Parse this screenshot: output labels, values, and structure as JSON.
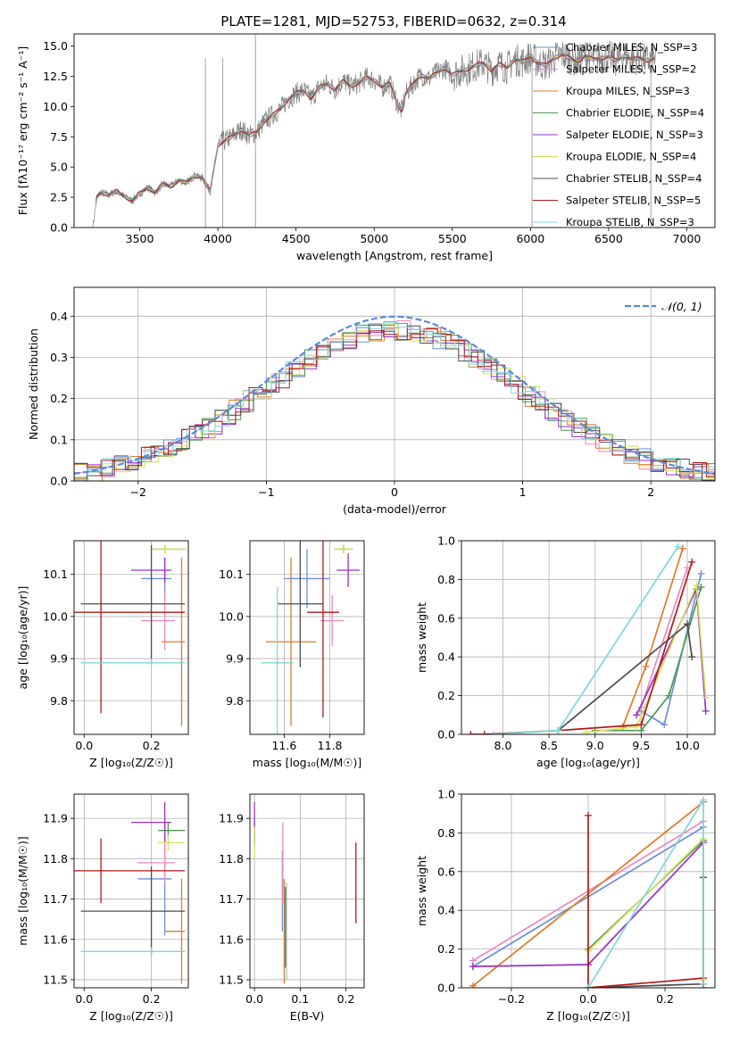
{
  "figure": {
    "title": "PLATE=1281, MJD=52753, FIBERID=0632, z=0.314"
  },
  "chart_data": [
    {
      "id": "spectrum",
      "type": "line",
      "xlabel": "wavelength [Angstrom, rest frame]",
      "ylabel": "Flux [fλ10⁻¹⁷ erg cm⁻² s⁻¹ A⁻¹]",
      "xlim": [
        3080,
        7180
      ],
      "ylim": [
        0,
        16
      ],
      "xticks": [
        3500,
        4000,
        4500,
        5000,
        5500,
        6000,
        6500,
        7000
      ],
      "yticks": [
        0.0,
        2.5,
        5.0,
        7.5,
        10.0,
        12.5,
        15.0
      ],
      "grid": false,
      "legend_position": "top-right",
      "data_points": {
        "x": [
          3200,
          3225,
          3250,
          3300,
          3350,
          3400,
          3450,
          3500,
          3550,
          3600,
          3650,
          3700,
          3750,
          3800,
          3850,
          3900,
          3950,
          4000,
          4050,
          4100,
          4150,
          4200,
          4250,
          4300,
          4350,
          4400,
          4450,
          4500,
          4550,
          4600,
          4650,
          4700,
          4750,
          4800,
          4850,
          4900,
          4950,
          5000,
          5050,
          5100,
          5150,
          5175,
          5200,
          5250,
          5300,
          5350,
          5400,
          5450,
          5500,
          5550,
          5600,
          5650,
          5700,
          5750,
          5800,
          5850,
          5900,
          5950,
          6000,
          6050,
          6100,
          6150,
          6200,
          6250,
          6300,
          6350,
          6400,
          6450,
          6500,
          6550,
          6600,
          6650,
          6700,
          6750,
          6800
        ],
        "y": [
          0.0,
          2.5,
          2.9,
          2.7,
          3.0,
          2.6,
          2.2,
          2.8,
          3.3,
          2.9,
          3.6,
          3.4,
          3.9,
          3.7,
          4.3,
          4.1,
          3.0,
          6.8,
          7.2,
          7.6,
          8.1,
          7.6,
          7.9,
          8.8,
          9.3,
          9.8,
          10.6,
          11.1,
          11.3,
          10.7,
          11.6,
          11.9,
          11.4,
          12.1,
          11.7,
          11.9,
          12.4,
          12.2,
          11.6,
          11.9,
          10.2,
          9.6,
          11.0,
          11.9,
          12.6,
          12.3,
          12.8,
          13.2,
          12.6,
          12.9,
          13.1,
          13.4,
          13.6,
          13.0,
          13.5,
          13.2,
          13.9,
          13.7,
          14.1,
          13.6,
          13.4,
          14.0,
          14.3,
          14.0,
          13.7,
          14.2,
          13.9,
          14.0,
          14.1,
          13.8,
          14.2,
          13.9,
          14.0,
          13.8,
          14.0
        ]
      },
      "series": [
        {
          "name": "Chabrier MILES, N_SSP=3",
          "color": "#6b8fd6"
        },
        {
          "name": "Salpeter MILES, N_SSP=2",
          "color": "#e78ac3"
        },
        {
          "name": "Kroupa MILES, N_SSP=3",
          "color": "#e07b27"
        },
        {
          "name": "Chabrier ELODIE, N_SSP=4",
          "color": "#4f9a4f"
        },
        {
          "name": "Salpeter ELODIE, N_SSP=3",
          "color": "#9b30c6"
        },
        {
          "name": "Kroupa ELODIE, N_SSP=4",
          "color": "#d6e05a"
        },
        {
          "name": "Chabrier STELIB, N_SSP=4",
          "color": "#4d4d4d"
        },
        {
          "name": "Salpeter STELIB, N_SSP=5",
          "color": "#b01818"
        },
        {
          "name": "Kroupa STELIB, N_SSP=3",
          "color": "#7fd6de"
        }
      ]
    },
    {
      "id": "residuals",
      "type": "histogram",
      "xlabel": "(data-model)/error",
      "ylabel": "Normed distribution",
      "xlim": [
        -2.5,
        2.5
      ],
      "ylim": [
        0,
        0.47
      ],
      "xticks": [
        -2,
        -1,
        0,
        1,
        2
      ],
      "yticks": [
        0.0,
        0.1,
        0.2,
        0.3,
        0.4
      ],
      "grid": true,
      "legend_position": "top-right",
      "reference_curve": {
        "name": "𝒩(0, 1)",
        "color": "#5b8bd8"
      }
    },
    {
      "id": "age-vs-Z",
      "type": "errorbar",
      "xlabel": "Z [log₁₀(Z/Z☉)]",
      "ylabel": "age  [log₁₀(age/yr)]",
      "xlim": [
        -0.03,
        0.31
      ],
      "ylim": [
        9.72,
        10.18
      ],
      "xticks": [
        0.0,
        0.2
      ],
      "yticks": [
        9.8,
        9.9,
        10.0,
        10.1
      ],
      "grid": true,
      "points": [
        {
          "x": 0.24,
          "y": 10.09,
          "xerr": [
            0.07,
            0.02
          ],
          "yerr": 0.05,
          "color": "#6b8fd6"
        },
        {
          "x": 0.24,
          "y": 9.99,
          "xerr": [
            0.07,
            0.03
          ],
          "yerr": 0.07,
          "color": "#e78ac3"
        },
        {
          "x": 0.29,
          "y": 9.94,
          "xerr": [
            0.06,
            0.01
          ],
          "yerr": 0.2,
          "color": "#e07b27"
        },
        {
          "x": 0.24,
          "y": 10.16,
          "xerr": [
            0.04,
            0.06
          ],
          "yerr": 0.01,
          "color": "#4f9a4f"
        },
        {
          "x": 0.24,
          "y": 10.11,
          "xerr": [
            0.1,
            0.02
          ],
          "yerr": 0.03,
          "color": "#9b30c6"
        },
        {
          "x": 0.24,
          "y": 10.16,
          "xerr": [
            0.04,
            0.06
          ],
          "yerr": 0.01,
          "color": "#d6e05a"
        },
        {
          "x": 0.2,
          "y": 10.03,
          "xerr": [
            0.21,
            0.1
          ],
          "yerr": 0.14,
          "color": "#4d4d4d"
        },
        {
          "x": 0.05,
          "y": 10.01,
          "xerr": [
            0.08,
            0.25
          ],
          "yerr": 0.24,
          "color": "#b01818"
        },
        {
          "x": 0.2,
          "y": 9.89,
          "xerr": [
            0.21,
            0.1
          ],
          "yerr": 0.01,
          "color": "#7fd6de"
        }
      ]
    },
    {
      "id": "age-vs-mass",
      "type": "errorbar",
      "xlabel": "mass [log₁₀(M/M☉)]",
      "ylabel": "",
      "xlim": [
        11.45,
        11.95
      ],
      "ylim": [
        9.72,
        10.18
      ],
      "xticks": [
        11.6,
        11.8
      ],
      "yticks": [
        9.8,
        9.9,
        10.0,
        10.1
      ],
      "grid": true,
      "points": [
        {
          "x": 11.7,
          "y": 10.09,
          "xerr": 0.1,
          "yerr": 0.07,
          "color": "#6b8fd6"
        },
        {
          "x": 11.81,
          "y": 9.99,
          "xerr": 0.05,
          "yerr": 0.06,
          "color": "#e78ac3"
        },
        {
          "x": 11.63,
          "y": 9.94,
          "xerr": 0.11,
          "yerr": 0.2,
          "color": "#e07b27"
        },
        {
          "x": 11.86,
          "y": 10.16,
          "xerr": 0.04,
          "yerr": 0.01,
          "color": "#4f9a4f"
        },
        {
          "x": 11.88,
          "y": 10.11,
          "xerr": 0.05,
          "yerr": 0.04,
          "color": "#9b30c6"
        },
        {
          "x": 11.86,
          "y": 10.16,
          "xerr": 0.04,
          "yerr": 0.01,
          "color": "#d6e05a"
        },
        {
          "x": 11.67,
          "y": 10.03,
          "xerr": 0.1,
          "yerr": 0.15,
          "color": "#4d4d4d"
        },
        {
          "x": 11.77,
          "y": 10.01,
          "xerr": 0.07,
          "yerr": 0.25,
          "color": "#b01818"
        },
        {
          "x": 11.57,
          "y": 9.89,
          "xerr": 0.07,
          "yerr": 0.18,
          "color": "#7fd6de"
        }
      ]
    },
    {
      "id": "weight-vs-age",
      "type": "line",
      "xlabel": "age  [log₁₀(age/yr)]",
      "ylabel": "mass weight",
      "xlim": [
        7.55,
        10.3
      ],
      "ylim": [
        0,
        1
      ],
      "xticks": [
        8.0,
        8.5,
        9.0,
        9.5,
        10.0
      ],
      "yticks": [
        0.0,
        0.2,
        0.4,
        0.6,
        0.8,
        1.0
      ],
      "grid": true,
      "series": [
        {
          "color": "#6b8fd6",
          "x": [
            9.5,
            9.75,
            10.15
          ],
          "y": [
            0.12,
            0.05,
            0.83
          ]
        },
        {
          "color": "#e78ac3",
          "x": [
            9.5,
            10.0
          ],
          "y": [
            0.14,
            0.86
          ]
        },
        {
          "color": "#e07b27",
          "x": [
            9.3,
            9.55,
            9.95
          ],
          "y": [
            0.04,
            0.35,
            0.96
          ]
        },
        {
          "color": "#4f9a4f",
          "x": [
            9.0,
            9.5,
            9.8,
            10.15
          ],
          "y": [
            0.02,
            0.02,
            0.2,
            0.76
          ]
        },
        {
          "color": "#9b30c6",
          "x": [
            9.45,
            10.1,
            10.2
          ],
          "y": [
            0.1,
            0.75,
            0.12
          ]
        },
        {
          "color": "#d6e05a",
          "x": [
            8.9,
            9.45,
            10.1,
            10.2
          ],
          "y": [
            0.01,
            0.04,
            0.77,
            0.19
          ]
        },
        {
          "color": "#4d4d4d",
          "x": [
            8.6,
            10.0,
            10.05
          ],
          "y": [
            0.02,
            0.57,
            0.4
          ]
        },
        {
          "color": "#b01818",
          "x": [
            7.65,
            7.8,
            8.6,
            9.5,
            10.05
          ],
          "y": [
            0.0,
            0.0,
            0.02,
            0.05,
            0.89
          ]
        },
        {
          "color": "#7fd6de",
          "x": [
            7.9,
            8.6,
            9.9
          ],
          "y": [
            0.0,
            0.02,
            0.97
          ]
        }
      ]
    },
    {
      "id": "mass-vs-Z",
      "type": "errorbar",
      "xlabel": "Z [log₁₀(Z/Z☉)]",
      "ylabel": "mass [log₁₀(M/M☉)]",
      "xlim": [
        -0.03,
        0.31
      ],
      "ylim": [
        11.48,
        11.96
      ],
      "xticks": [
        0.0,
        0.2
      ],
      "yticks": [
        11.5,
        11.6,
        11.7,
        11.8,
        11.9
      ],
      "grid": true,
      "points": [
        {
          "x": 0.24,
          "y": 11.75,
          "xerr": [
            0.08,
            0.02
          ],
          "yerr": 0.14,
          "color": "#6b8fd6"
        },
        {
          "x": 0.24,
          "y": 11.79,
          "xerr": [
            0.08,
            0.03
          ],
          "yerr": 0.05,
          "color": "#e78ac3"
        },
        {
          "x": 0.29,
          "y": 11.62,
          "xerr": [
            0.05,
            0.01
          ],
          "yerr": 0.13,
          "color": "#e07b27"
        },
        {
          "x": 0.25,
          "y": 11.87,
          "xerr": [
            0.03,
            0.05
          ],
          "yerr": 0.02,
          "color": "#4f9a4f"
        },
        {
          "x": 0.24,
          "y": 11.89,
          "xerr": [
            0.1,
            0.02
          ],
          "yerr": 0.05,
          "color": "#9b30c6"
        },
        {
          "x": 0.25,
          "y": 11.84,
          "xerr": [
            0.03,
            0.05
          ],
          "yerr": 0.02,
          "color": "#d6e05a"
        },
        {
          "x": 0.2,
          "y": 11.67,
          "xerr": [
            0.21,
            0.1
          ],
          "yerr": 0.11,
          "color": "#4d4d4d"
        },
        {
          "x": 0.05,
          "y": 11.77,
          "xerr": [
            0.08,
            0.25
          ],
          "yerr": 0.08,
          "color": "#b01818"
        },
        {
          "x": 0.2,
          "y": 11.57,
          "xerr": [
            0.21,
            0.1
          ],
          "yerr": 0.01,
          "color": "#7fd6de"
        }
      ]
    },
    {
      "id": "mass-vs-EBV",
      "type": "errorbar",
      "xlabel": "E(B-V)",
      "ylabel": "",
      "xlim": [
        -0.01,
        0.24
      ],
      "ylim": [
        11.48,
        11.96
      ],
      "xticks": [
        0.0,
        0.1,
        0.2
      ],
      "yticks": [
        11.5,
        11.6,
        11.7,
        11.8,
        11.9
      ],
      "grid": true,
      "points": [
        {
          "x": 0.061,
          "y": 11.72,
          "yerr": 0.1,
          "color": "#6b8fd6"
        },
        {
          "x": 0.062,
          "y": 11.79,
          "yerr": 0.1,
          "color": "#e78ac3"
        },
        {
          "x": 0.065,
          "y": 11.62,
          "yerr": 0.13,
          "color": "#e07b27"
        },
        {
          "x": 0.0,
          "y": 11.86,
          "yerr": 0.03,
          "color": "#4f9a4f"
        },
        {
          "x": 0.0,
          "y": 11.89,
          "yerr": 0.05,
          "color": "#9b30c6"
        },
        {
          "x": 0.0,
          "y": 11.84,
          "yerr": 0.04,
          "color": "#d6e05a"
        },
        {
          "x": 0.068,
          "y": 11.63,
          "yerr": 0.1,
          "color": "#4d4d4d"
        },
        {
          "x": 0.222,
          "y": 11.74,
          "yerr": 0.1,
          "color": "#b01818"
        },
        {
          "x": 0.07,
          "y": 11.62,
          "yerr": 0.12,
          "color": "#7fd6de"
        }
      ]
    },
    {
      "id": "weight-vs-Z",
      "type": "line",
      "xlabel": "Z [log₁₀(Z/Z☉)]",
      "ylabel": "mass weight",
      "xlim": [
        -0.33,
        0.33
      ],
      "ylim": [
        0,
        1
      ],
      "xticks": [
        -0.2,
        0.0,
        0.2
      ],
      "yticks": [
        0.0,
        0.2,
        0.4,
        0.6,
        0.8,
        1.0
      ],
      "grid": true,
      "series": [
        {
          "color": "#6b8fd6",
          "x": [
            -0.3,
            0.3
          ],
          "y": [
            0.11,
            0.83
          ]
        },
        {
          "color": "#e78ac3",
          "x": [
            -0.3,
            0.3
          ],
          "y": [
            0.14,
            0.86
          ]
        },
        {
          "color": "#e07b27",
          "x": [
            -0.3,
            0.3
          ],
          "y": [
            0.01,
            0.96
          ]
        },
        {
          "color": "#4f9a4f",
          "x": [
            0.0,
            0.3,
            0.3
          ],
          "y": [
            0.2,
            0.76,
            0.02
          ]
        },
        {
          "color": "#9b30c6",
          "x": [
            -0.3,
            0.0,
            0.3,
            0.3
          ],
          "y": [
            0.11,
            0.12,
            0.75,
            0.02
          ]
        },
        {
          "color": "#d6e05a",
          "x": [
            0.0,
            0.3,
            0.3
          ],
          "y": [
            0.19,
            0.77,
            0.04
          ]
        },
        {
          "color": "#4d4d4d",
          "x": [
            0.0,
            0.3,
            0.3
          ],
          "y": [
            0.0,
            0.02,
            0.57
          ]
        },
        {
          "color": "#b01818",
          "x": [
            0.0,
            0.0,
            0.3,
            0.3
          ],
          "y": [
            0.89,
            0.0,
            0.05,
            0.0
          ]
        },
        {
          "color": "#7fd6de",
          "x": [
            0.0,
            0.3,
            0.3
          ],
          "y": [
            0.0,
            0.97,
            0.02
          ]
        }
      ]
    }
  ]
}
